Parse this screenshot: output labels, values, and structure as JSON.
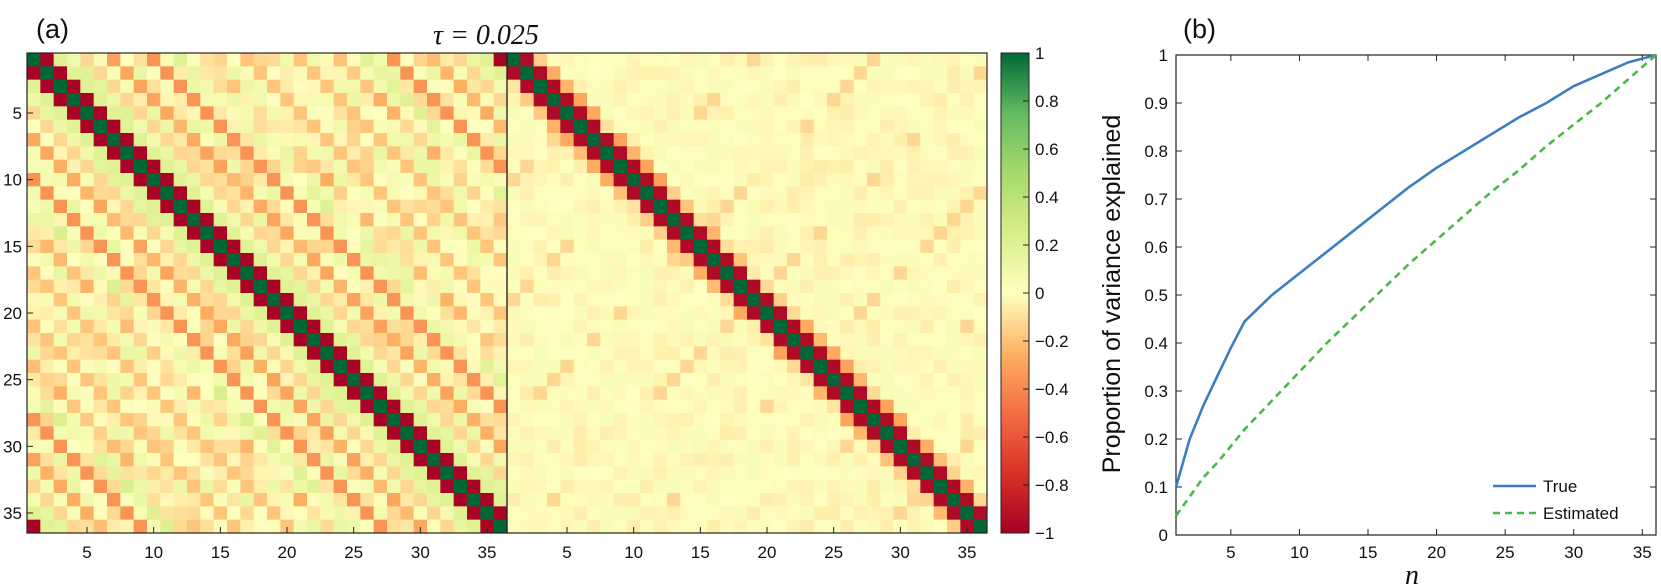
{
  "chart_data": [
    {
      "panel": "(a)",
      "type": "heatmap",
      "title": "τ = 0.025",
      "matrix_size": 36,
      "matrices": [
        "left",
        "right"
      ],
      "x_ticks": [
        "5",
        "10",
        "15",
        "20",
        "25",
        "30",
        "35",
        "5",
        "10",
        "15",
        "20",
        "25",
        "30",
        "35"
      ],
      "y_ticks": [
        "5",
        "10",
        "15",
        "20",
        "25",
        "30",
        "35"
      ],
      "colorbar": {
        "range": [
          -1,
          1
        ],
        "ticks": [
          "1",
          "0.8",
          "0.6",
          "0.4",
          "0.2",
          "0",
          "−0.2",
          "−0.4",
          "−0.6",
          "−0.8",
          "−1"
        ],
        "colors": {
          "negative": "#a50026",
          "zero": "#ffffbf",
          "positive": "#006837"
        }
      }
    },
    {
      "panel": "(b)",
      "type": "line",
      "xlabel": "n",
      "ylabel": "Proportion of variance explained",
      "xlim": [
        1,
        36
      ],
      "ylim": [
        0,
        1
      ],
      "x_ticks": [
        "5",
        "10",
        "15",
        "20",
        "25",
        "30",
        "35"
      ],
      "y_ticks": [
        "0",
        "0.1",
        "0.2",
        "0.3",
        "0.4",
        "0.5",
        "0.6",
        "0.7",
        "0.8",
        "0.9",
        "1"
      ],
      "legend_position": "bottom-right",
      "series": [
        {
          "name": "True",
          "color": "#3a7fbf",
          "style": "solid",
          "x": [
            1,
            2,
            3,
            4,
            5,
            6,
            8,
            10,
            12,
            14,
            16,
            18,
            20,
            22,
            24,
            26,
            28,
            30,
            32,
            34,
            36
          ],
          "y": [
            0.1,
            0.2,
            0.27,
            0.33,
            0.39,
            0.445,
            0.5,
            0.545,
            0.59,
            0.635,
            0.68,
            0.725,
            0.765,
            0.8,
            0.835,
            0.87,
            0.9,
            0.935,
            0.96,
            0.985,
            1.0
          ]
        },
        {
          "name": "Estimated",
          "color": "#4db848",
          "style": "dashed",
          "x": [
            1,
            2,
            3,
            4,
            6,
            8,
            10,
            12,
            14,
            16,
            18,
            20,
            22,
            24,
            26,
            28,
            30,
            32,
            34,
            36
          ],
          "y": [
            0.04,
            0.08,
            0.12,
            0.15,
            0.22,
            0.28,
            0.34,
            0.4,
            0.455,
            0.51,
            0.565,
            0.615,
            0.665,
            0.715,
            0.76,
            0.81,
            0.855,
            0.9,
            0.95,
            1.0
          ]
        }
      ]
    }
  ]
}
